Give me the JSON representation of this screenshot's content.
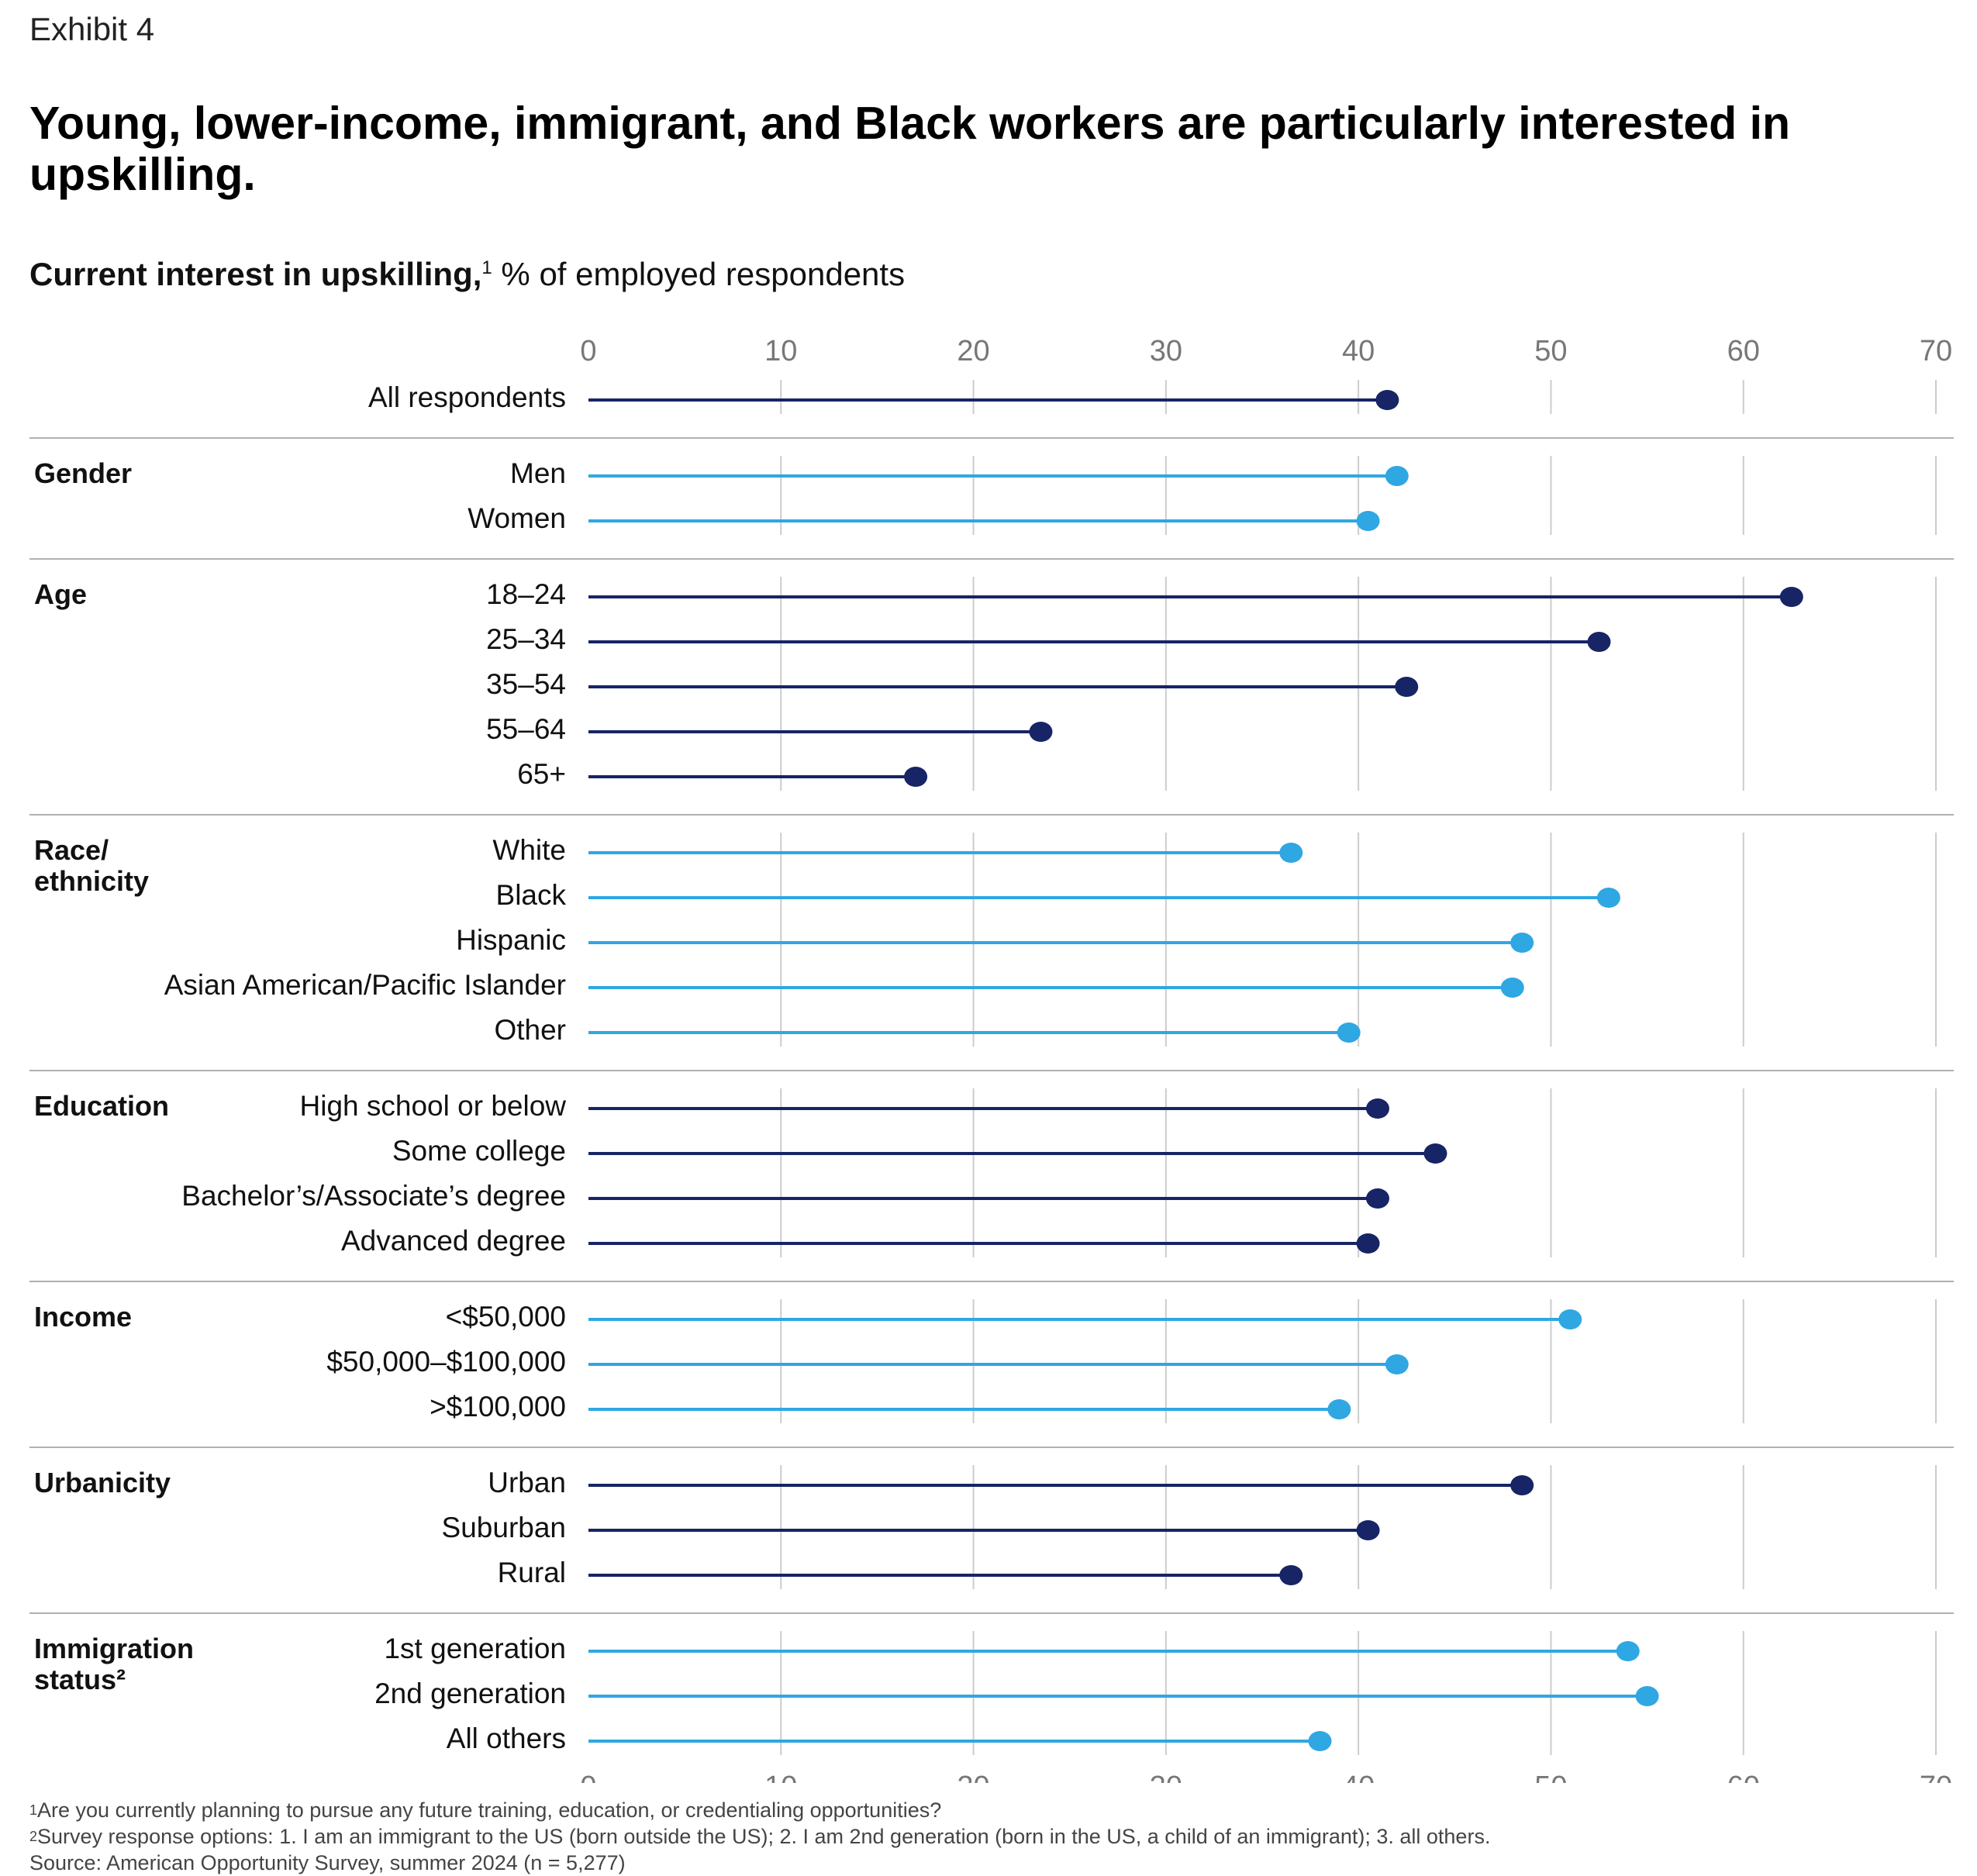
{
  "header": {
    "exhibit": "Exhibit 4",
    "title": "Young, lower-income, immigrant, and Black workers are particularly interested in upskilling.",
    "subtitle_bold": "Current interest in upskilling,",
    "subtitle_sup": "1",
    "subtitle_rest": " % of employed respondents"
  },
  "colors": {
    "dark": "#172465",
    "light": "#2fa7e3",
    "grid": "#cccccc",
    "divider": "#b0b0b0"
  },
  "chart_data": {
    "type": "lollipop",
    "xlim": [
      0,
      70
    ],
    "ticks": [
      "0",
      "10",
      "20",
      "30",
      "40",
      "50",
      "60",
      "70"
    ],
    "groups": [
      {
        "name": "",
        "color": "dark",
        "items": [
          {
            "label": "All respondents",
            "value": 41.5
          }
        ]
      },
      {
        "name": "Gender",
        "color": "light",
        "items": [
          {
            "label": "Men",
            "value": 42
          },
          {
            "label": "Women",
            "value": 40.5
          }
        ]
      },
      {
        "name": "Age",
        "color": "dark",
        "items": [
          {
            "label": "18–24",
            "value": 62.5
          },
          {
            "label": "25–34",
            "value": 52.5
          },
          {
            "label": "35–54",
            "value": 42.5
          },
          {
            "label": "55–64",
            "value": 23.5
          },
          {
            "label": "65+",
            "value": 17
          }
        ]
      },
      {
        "name": "Race/\nethnicity",
        "color": "light",
        "items": [
          {
            "label": "White",
            "value": 36.5
          },
          {
            "label": "Black",
            "value": 53
          },
          {
            "label": "Hispanic",
            "value": 48.5
          },
          {
            "label": "Asian American/Pacific Islander",
            "value": 48
          },
          {
            "label": "Other",
            "value": 39.5
          }
        ]
      },
      {
        "name": "Education",
        "color": "dark",
        "items": [
          {
            "label": "High school or below",
            "value": 41
          },
          {
            "label": "Some college",
            "value": 44
          },
          {
            "label": "Bachelor’s/Associate’s degree",
            "value": 41
          },
          {
            "label": "Advanced degree",
            "value": 40.5
          }
        ]
      },
      {
        "name": "Income",
        "color": "light",
        "items": [
          {
            "label": "<$50,000",
            "value": 51
          },
          {
            "label": "$50,000–$100,000",
            "value": 42
          },
          {
            "label": ">$100,000",
            "value": 39
          }
        ]
      },
      {
        "name": "Urbanicity",
        "color": "dark",
        "items": [
          {
            "label": "Urban",
            "value": 48.5
          },
          {
            "label": "Suburban",
            "value": 40.5
          },
          {
            "label": "Rural",
            "value": 36.5
          }
        ]
      },
      {
        "name": "Immigration\nstatus²",
        "color": "light",
        "items": [
          {
            "label": "1st generation",
            "value": 54
          },
          {
            "label": "2nd generation",
            "value": 55
          },
          {
            "label": "All others",
            "value": 38
          }
        ]
      }
    ]
  },
  "footnotes": {
    "n1_num": "1",
    "n1": "Are you currently planning to pursue any future training, education, or credentialing opportunities?",
    "n2_num": "2",
    "n2": "Survey response options: 1. I am an immigrant to the US (born outside the US); 2. I am 2nd generation (born in the US, a child of an immigrant); 3. all others.",
    "source": " Source: American Opportunity Survey, summer 2024 (n = 5,277)"
  }
}
